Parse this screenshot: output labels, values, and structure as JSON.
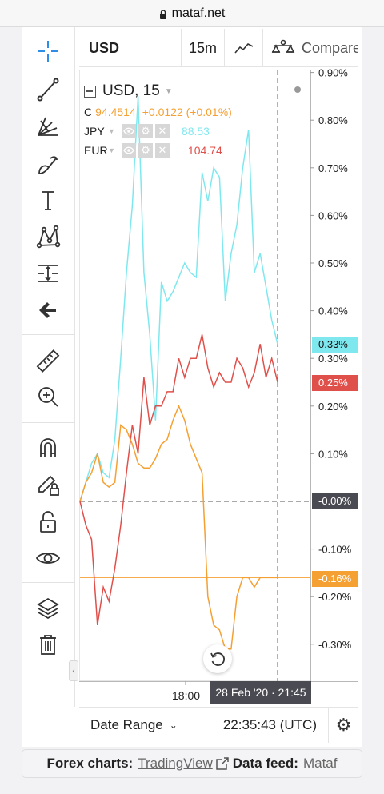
{
  "browser": {
    "url": "mataf.net"
  },
  "toolbar_top": {
    "symbol": "USD",
    "interval": "15m",
    "compare_label": "Compare"
  },
  "legend": {
    "title": "USD, 15",
    "close_label": "C",
    "close_value": "94.4514",
    "change": "+0.0122 (+0.01%)",
    "series": [
      {
        "name": "JPY",
        "value": "88.53"
      },
      {
        "name": "EUR",
        "value": "104.74"
      }
    ]
  },
  "colors": {
    "usd": "#f5a033",
    "jpy": "#7fe8ee",
    "eur": "#e0504b",
    "badge_zero": "#4a4a52"
  },
  "price_axis": {
    "ticks": [
      "0.90%",
      "0.80%",
      "0.70%",
      "0.60%",
      "0.50%",
      "0.40%",
      "0.30%",
      "0.20%",
      "0.10%",
      "-0.10%",
      "-0.20%",
      "-0.30%"
    ],
    "badges": {
      "jpy": "0.33%",
      "eur": "0.25%",
      "zero": "-0.00%",
      "usd": "-0.16%"
    }
  },
  "time_axis": {
    "tick": "18:00",
    "cursor_label": "28 Feb '20 · 21:45"
  },
  "bottom_bar": {
    "date_range": "Date Range",
    "time": "22:35:43 (UTC)"
  },
  "footer": {
    "prefix": "Forex charts:",
    "charts_link": "TradingView",
    "feed_prefix": "Data feed:",
    "feed_link": "Mataf"
  },
  "chart_data": {
    "type": "line",
    "ylim": [
      -0.36,
      0.9
    ],
    "y_unit": "%",
    "series": [
      {
        "name": "JPY",
        "values": [
          0.0,
          0.04,
          0.08,
          0.1,
          0.06,
          0.05,
          0.13,
          0.3,
          0.48,
          0.62,
          0.85,
          0.48,
          0.35,
          0.17,
          0.46,
          0.42,
          0.44,
          0.47,
          0.5,
          0.48,
          0.47,
          0.69,
          0.63,
          0.7,
          0.68,
          0.42,
          0.52,
          0.58,
          0.7,
          0.78,
          0.48,
          0.52,
          0.45,
          0.38,
          0.33
        ]
      },
      {
        "name": "EUR",
        "values": [
          0.0,
          -0.05,
          -0.08,
          -0.26,
          -0.18,
          -0.21,
          -0.14,
          -0.05,
          0.06,
          0.16,
          0.1,
          0.26,
          0.16,
          0.2,
          0.2,
          0.23,
          0.23,
          0.3,
          0.26,
          0.3,
          0.3,
          0.35,
          0.28,
          0.24,
          0.27,
          0.25,
          0.25,
          0.3,
          0.28,
          0.24,
          0.27,
          0.33,
          0.26,
          0.3,
          0.25
        ]
      },
      {
        "name": "USD",
        "values": [
          0.0,
          0.04,
          0.06,
          0.1,
          0.04,
          0.03,
          0.04,
          0.16,
          0.15,
          0.12,
          0.08,
          0.07,
          0.07,
          0.09,
          0.12,
          0.13,
          0.17,
          0.2,
          0.17,
          0.12,
          0.09,
          0.06,
          -0.2,
          -0.26,
          -0.27,
          -0.31,
          -0.31,
          -0.2,
          -0.16,
          -0.16,
          -0.18,
          -0.16,
          -0.16,
          -0.16,
          -0.16
        ]
      }
    ],
    "cursor_x": "28 Feb '20 · 21:45",
    "grid": false
  }
}
